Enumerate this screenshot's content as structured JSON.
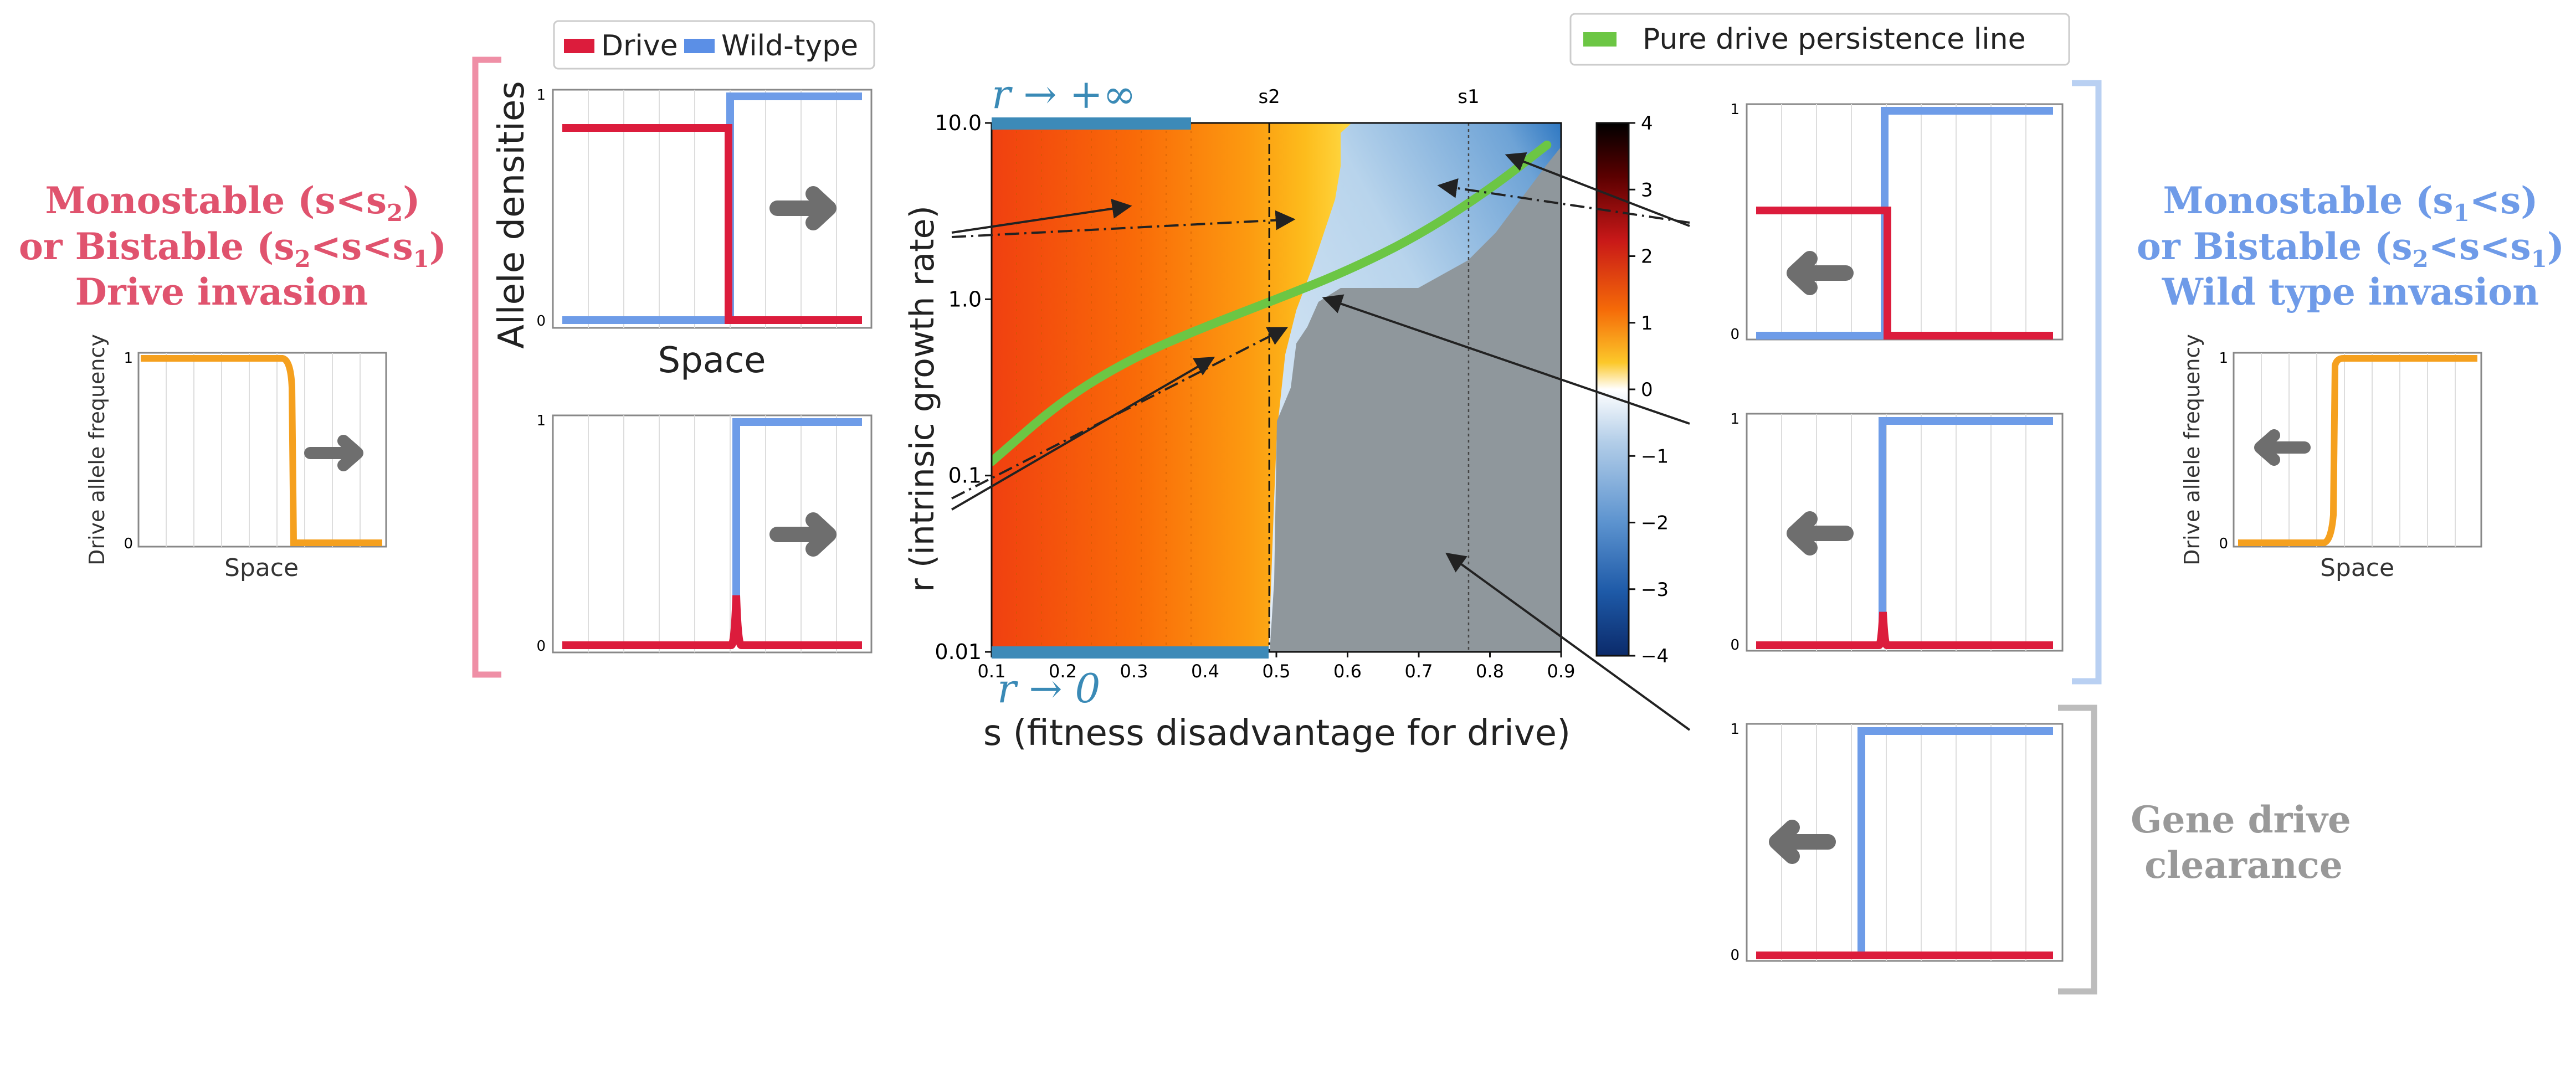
{
  "left_title": {
    "line1": "Monostable (s<s",
    "sub1": "2",
    "line1_end": ")",
    "line2_a": "or Bistable (s",
    "sub2a": "2",
    "line2_b": "<s<s",
    "sub2b": "1",
    "line2_end": ")",
    "line3": "Drive invasion",
    "color": "#e0536e"
  },
  "right_title": {
    "line1_a": "Monostable (s",
    "sub1": "1",
    "line1_b": "<s)",
    "line2_a": "or Bistable (s",
    "sub2a": "2",
    "line2_b": "<s<s",
    "sub2b": "1",
    "line2_end": ")",
    "line3": "Wild type invasion",
    "color": "#6f9be8"
  },
  "clearance_title": {
    "line1": "Gene drive",
    "line2": "clearance",
    "color": "#999999"
  },
  "legend_alleles": {
    "drive": "Drive",
    "wild": "Wild-type",
    "drive_color": "#dc1c3c",
    "wild_color": "#5b8fe6"
  },
  "legend_line": {
    "label": "Pure drive persistence line",
    "color": "#6cc644"
  },
  "allele_panel": {
    "ylabel": "Allele densities",
    "xlabel": "Space",
    "ytick_low": "0",
    "ytick_high": "1"
  },
  "freq_panel": {
    "ylabel": "Drive allele frequency",
    "xlabel": "Space",
    "ytick_low": "0",
    "ytick_high": "1",
    "color": "#f5a01e"
  },
  "main_plot": {
    "xlabel": "s (fitness disadvantage for drive)",
    "ylabel": "r (intrinsic growth rate)",
    "xticks": [
      "0.1",
      "0.2",
      "0.3",
      "0.4",
      "0.5",
      "0.6",
      "0.7",
      "0.8",
      "0.9"
    ],
    "yticks": [
      "0.01",
      "0.1",
      "1.0",
      "10.0"
    ],
    "s2_label": "s2",
    "s1_label": "s1",
    "r_inf_label": "r → +∞",
    "r_zero_label": "r → 0",
    "colorbar_ticks": [
      "4",
      "3",
      "2",
      "1",
      "0",
      "−1",
      "−2",
      "−3",
      "−4"
    ],
    "grey": "#8f979c"
  },
  "chart_data": {
    "type": "heatmap",
    "x": {
      "label": "s (fitness disadvantage for drive)",
      "range": [
        0.1,
        0.9
      ]
    },
    "y": {
      "label": "r (intrinsic growth rate)",
      "range": [
        0.01,
        10
      ],
      "scale": "log"
    },
    "colorbar": {
      "range": [
        -4,
        4
      ]
    },
    "s2": 0.49,
    "s1": 0.77,
    "wave_boundary": [
      [
        0.49,
        0.01
      ],
      [
        0.495,
        0.03
      ],
      [
        0.5,
        0.2
      ],
      [
        0.52,
        0.3
      ],
      [
        0.54,
        0.6
      ],
      [
        0.56,
        1.0
      ],
      [
        0.6,
        1.6
      ],
      [
        0.63,
        2.0
      ],
      [
        0.68,
        2.6
      ],
      [
        0.72,
        3.2
      ],
      [
        0.76,
        4
      ],
      [
        0.8,
        5
      ],
      [
        0.9,
        10
      ]
    ],
    "persistence_line": [
      [
        0.1,
        0.12
      ],
      [
        0.2,
        0.27
      ],
      [
        0.3,
        0.47
      ],
      [
        0.4,
        0.7
      ],
      [
        0.5,
        1.0
      ],
      [
        0.6,
        1.45
      ],
      [
        0.7,
        2.3
      ],
      [
        0.8,
        4.2
      ],
      [
        0.88,
        7.5
      ]
    ],
    "drive_zone_boundary": [
      [
        0.5,
        10
      ],
      [
        0.5,
        0.3
      ],
      [
        0.6,
        10
      ]
    ],
    "series": [
      {
        "name": "Pure drive persistence line",
        "values": [
          0.12,
          0.27,
          0.47,
          0.7,
          1.0,
          1.45,
          2.3,
          4.2,
          7.5
        ]
      }
    ]
  }
}
